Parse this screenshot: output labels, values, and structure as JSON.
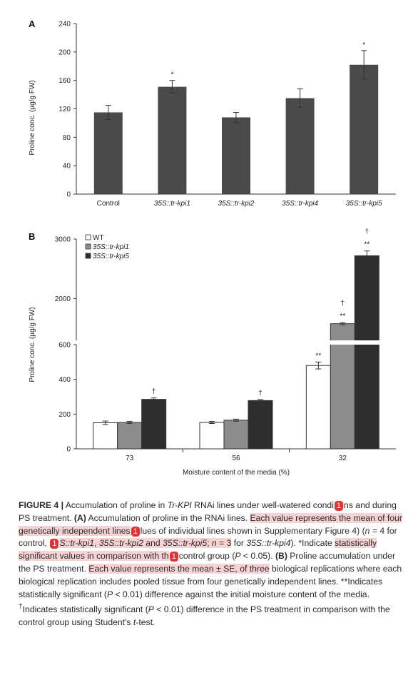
{
  "panel_a": {
    "letter": "A",
    "ylabel": "Proline conc. (µg/g FW)",
    "yticks": [
      "0",
      "40",
      "80",
      "120",
      "160",
      "200",
      "240"
    ],
    "chart_data": {
      "type": "bar",
      "categories": [
        "Control",
        "35S::tr-kpi1",
        "35S::tr-kpi2",
        "35S::tr-kpi4",
        "35S::tr-kpi5"
      ],
      "values": [
        115,
        151,
        108,
        135,
        182
      ],
      "errors": [
        10,
        9,
        7,
        13,
        20
      ],
      "annotations": [
        "",
        "*",
        "",
        "",
        "*"
      ],
      "ylim": [
        0,
        240
      ],
      "color": "#4a4a4a",
      "ylabel": "Proline conc. (µg/g FW)"
    }
  },
  "panel_b": {
    "letter": "B",
    "ylabel": "Proline conc. (µg/g FW)",
    "xlabel": "Moisture content of the media (%)",
    "lower_yticks": [
      "0",
      "200",
      "400",
      "600"
    ],
    "upper_yticks": [
      "2000",
      "3000"
    ],
    "legend": [
      {
        "name": "WT",
        "color": "#ffffff"
      },
      {
        "name": "35S::tr-kpi1",
        "color": "#8c8c8c"
      },
      {
        "name": "35S::tr-kpi5",
        "color": "#2e2e2e"
      }
    ],
    "chart_data": {
      "type": "bar",
      "broken_axis": true,
      "categories": [
        "73",
        "56",
        "32"
      ],
      "series": [
        {
          "name": "WT",
          "values": [
            150,
            152,
            480
          ],
          "errors": [
            10,
            6,
            20
          ],
          "annotations": [
            "",
            "",
            "**"
          ]
        },
        {
          "name": "35S::tr-kpi1",
          "values": [
            152,
            165,
            1580
          ],
          "errors": [
            6,
            6,
            20
          ],
          "annotations": [
            "",
            "",
            "**"
          ],
          "daggers": [
            "",
            "",
            "†"
          ]
        },
        {
          "name": "35S::tr-kpi5",
          "values": [
            285,
            278,
            2720
          ],
          "errors": [
            8,
            6,
            80
          ],
          "annotations": [
            "",
            "",
            "**"
          ],
          "daggers": [
            "†",
            "†",
            "†"
          ]
        }
      ],
      "ylim_lower": [
        0,
        600
      ],
      "ylim_upper": [
        1300,
        3000
      ],
      "xlabel": "Moisture content of the media (%)",
      "ylabel": "Proline conc. (µg/g FW)",
      "legend_position": "top-left"
    }
  },
  "caption": {
    "title": "FIGURE 4 |",
    "title_rest": " Accumulation of proline in ",
    "tr_kpi": "Tr-KPI",
    "s1": " RNAi lines under well-watered condi",
    "badge": "1",
    "s2": "ns and during PS treatment. ",
    "a_label": "(A)",
    "s3": " Accumulation of proline in the RNAi lines. ",
    "hl1": "Each value represents the mean of four genetically independent lines",
    "s4": "lues of individual lines shown in Supplementary Figure 4) (",
    "n": "n",
    "s5": " = 4 for control, ",
    "hl2a": "S::tr-kpi1",
    "s6": ", ",
    "hl2b": "35S::tr-kpi2",
    "s7": " and ",
    "hl2c": "35S::tr-kpi5",
    "s8": "; ",
    "s9": " = 3",
    "s10": " for ",
    "kpi4": "35S::tr-kpi4",
    "s11": "). *Indicate ",
    "hl3": "statistically significant values in comparison with th",
    "s12": "control group (",
    "p": "P",
    "s13": " < 0.05).",
    "b_label": "(B)",
    "s14": " Proline accumulation under the PS treatment. ",
    "hl4": "Each value represents the mean ± SE, of three",
    "s15": " biological replications where each biological replication includes pooled tissue from four genetically independent lines. **Indicates statistically significant (",
    "s16": " < 0.01) difference against the initial moisture content of the media. ",
    "dagger": "†",
    "s17": "Indicates statistically significant (",
    "s18": " < 0.01) difference in the PS treatment in comparison with the control group using Student's ",
    "t": "t",
    "s19": "-test."
  }
}
